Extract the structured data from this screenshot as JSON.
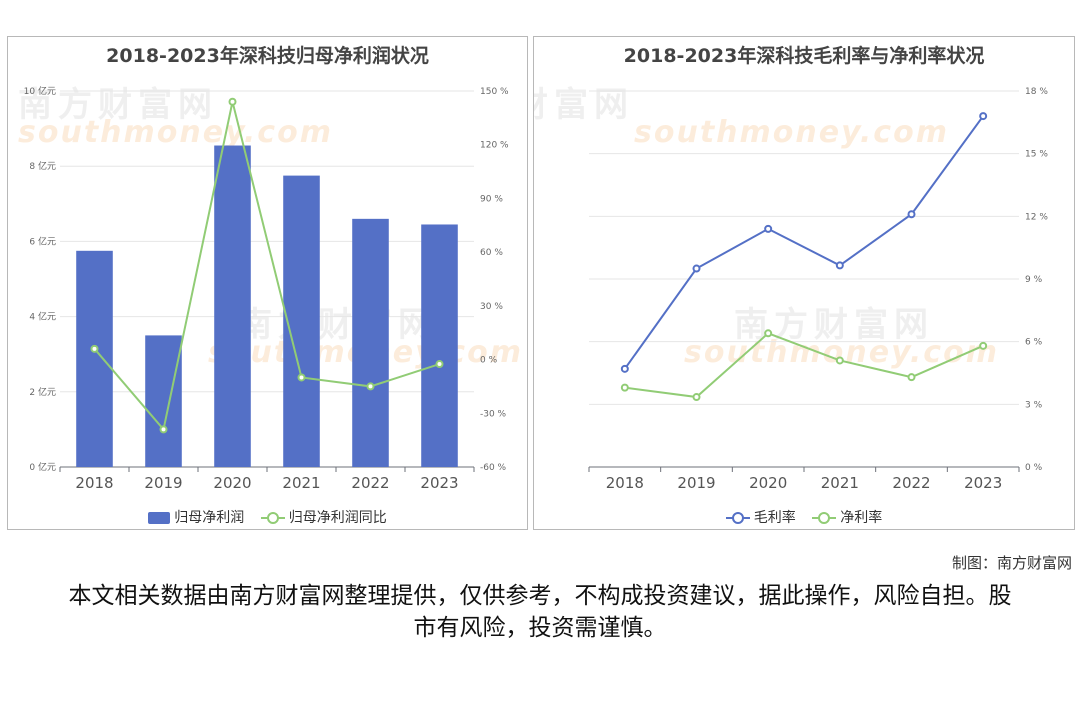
{
  "watermark": {
    "cn": "南方财富网",
    "en": "southmoney.com"
  },
  "chart_data": [
    {
      "type": "bar",
      "title": "2018-2023年深科技归母净利润状况",
      "categories": [
        "2018",
        "2019",
        "2020",
        "2021",
        "2022",
        "2023"
      ],
      "series": [
        {
          "name": "归母净利润",
          "type": "bar",
          "axis": "left",
          "color": "#5470c6",
          "values": [
            5.75,
            3.5,
            8.55,
            7.75,
            6.6,
            6.45
          ]
        },
        {
          "name": "归母净利润同比",
          "type": "line",
          "axis": "right",
          "color": "#91cc75",
          "values": [
            6,
            -39,
            144,
            -10,
            -15,
            -2.5
          ]
        }
      ],
      "y_left": {
        "min": 0,
        "max": 10,
        "ticks": [
          0,
          2,
          4,
          6,
          8,
          10
        ],
        "tick_labels": [
          "0 亿元",
          "2 亿元",
          "4 亿元",
          "6 亿元",
          "8 亿元",
          "10 亿元"
        ]
      },
      "y_right": {
        "min": -60,
        "max": 150,
        "ticks": [
          -60,
          -30,
          0,
          30,
          60,
          90,
          120,
          150
        ],
        "tick_labels": [
          "-60 %",
          "-30 %",
          "0 %",
          "30 %",
          "60 %",
          "90 %",
          "120 %",
          "150 %"
        ]
      },
      "grid": true,
      "legend": "bottom"
    },
    {
      "type": "line",
      "title": "2018-2023年深科技毛利率与净利率状况",
      "categories": [
        "2018",
        "2019",
        "2020",
        "2021",
        "2022",
        "2023"
      ],
      "series": [
        {
          "name": "毛利率",
          "color": "#5470c6",
          "values": [
            4.7,
            9.5,
            11.4,
            9.65,
            12.1,
            16.8
          ]
        },
        {
          "name": "净利率",
          "color": "#91cc75",
          "values": [
            3.8,
            3.35,
            6.4,
            5.1,
            4.3,
            5.8
          ]
        }
      ],
      "y_right": {
        "min": 0,
        "max": 18,
        "ticks": [
          0,
          3,
          6,
          9,
          12,
          15,
          18
        ],
        "tick_labels": [
          "0 %",
          "3 %",
          "6 %",
          "9 %",
          "12 %",
          "15 %",
          "18 %"
        ]
      },
      "grid": true,
      "legend": "bottom"
    }
  ],
  "credit": "制图：南方财富网",
  "disclaimer": "本文相关数据由南方财富网整理提供，仅供参考，不构成投资建议，据此操作，风险自担。股市有风险，投资需谨慎。"
}
